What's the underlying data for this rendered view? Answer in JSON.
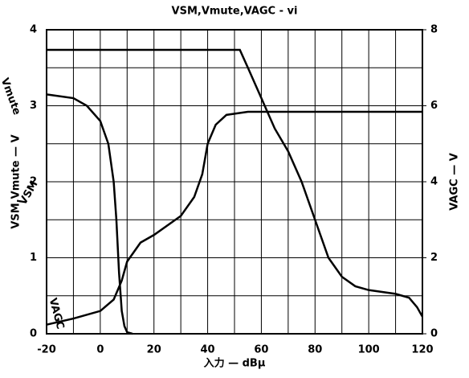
{
  "chart_data": {
    "type": "line",
    "title": "VSM,Vmute,VAGC - vi",
    "x_label": "入力 — dBμ",
    "y_label": "VSM,Vmute — V",
    "y2_label": "VAGC — V",
    "xlim": [
      -20,
      120
    ],
    "xticks": [
      -20,
      0,
      20,
      40,
      60,
      80,
      100,
      120
    ],
    "ylim": [
      0,
      4
    ],
    "yticks": [
      0,
      1,
      2,
      3,
      4
    ],
    "y2lim": [
      0,
      8
    ],
    "y2ticks": [
      0,
      2,
      4,
      6,
      8
    ],
    "grid": true,
    "series": [
      {
        "name": "Vmute",
        "color": "#000000",
        "x": [
          -20,
          -10,
          -5,
          0,
          3,
          5,
          6,
          7,
          8,
          9,
          10,
          12
        ],
        "values": [
          3.15,
          3.1,
          3.0,
          2.8,
          2.5,
          2.0,
          1.5,
          0.8,
          0.3,
          0.1,
          0.02,
          0
        ]
      },
      {
        "name": "VSM",
        "color": "#000000",
        "x": [
          -20,
          -10,
          0,
          5,
          8,
          10,
          15,
          20,
          30,
          35,
          38,
          40,
          43,
          47,
          55,
          120
        ],
        "values": [
          0.12,
          0.2,
          0.3,
          0.45,
          0.7,
          0.95,
          1.2,
          1.3,
          1.55,
          1.8,
          2.1,
          2.5,
          2.75,
          2.88,
          2.92,
          2.92
        ]
      },
      {
        "name": "VAGC",
        "color": "#000000",
        "axis": "y2",
        "x": [
          -20,
          52,
          55,
          60,
          65,
          70,
          75,
          80,
          85,
          90,
          95,
          100,
          110,
          115,
          118,
          120
        ],
        "values": [
          7.47,
          7.47,
          7.0,
          6.2,
          5.4,
          4.8,
          4.0,
          3.0,
          2.0,
          1.5,
          1.25,
          1.15,
          1.05,
          0.95,
          0.7,
          0.45
        ]
      }
    ]
  }
}
